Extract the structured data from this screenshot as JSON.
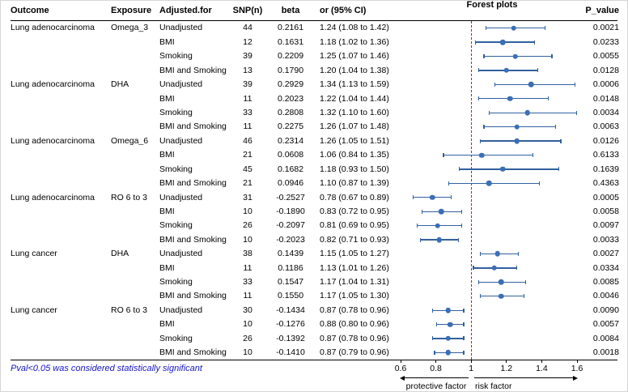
{
  "columns": [
    "Outcome",
    "Exposure",
    "Adjusted.for",
    "SNP(n)",
    "beta",
    "or (95% CI)",
    "Forest plots",
    "P_value"
  ],
  "footnote": "Pval<0.05 was considered statistically significant",
  "colors": {
    "marker": "#3b6eb5",
    "ci_line": "#31619f",
    "reference_line": "#e8000d",
    "footnote_text": "#1414cc",
    "rule": "#000000"
  },
  "chart_data": {
    "type": "scatter",
    "variant": "forest-plot",
    "title": "",
    "x_axis": {
      "min": 0.6,
      "max": 1.6,
      "scale": "linear",
      "ticks": [
        0.6,
        0.8,
        1,
        1.2,
        1.4,
        1.6
      ],
      "tick_labels": [
        "0.6",
        "0.8",
        "1",
        "1.2",
        "1.4",
        "1.6"
      ],
      "reference_line": 1
    },
    "annotations": {
      "left_label": "protective factor",
      "right_label": "risk factor"
    },
    "rows": [
      {
        "outcome": "Lung adenocarcinoma",
        "exposure": "Omega_3",
        "adjusted_for": "Unadjusted",
        "snp_n": "44",
        "beta": "0.2161",
        "or_ci": "1.24 (1.08 to 1.42)",
        "or": 1.24,
        "ci_low": 1.08,
        "ci_high": 1.42,
        "p_value": "0.0021"
      },
      {
        "outcome": "",
        "exposure": "",
        "adjusted_for": "BMI",
        "snp_n": "12",
        "beta": "0.1631",
        "or_ci": "1.18 (1.02 to 1.36)",
        "or": 1.18,
        "ci_low": 1.02,
        "ci_high": 1.36,
        "p_value": "0.0233"
      },
      {
        "outcome": "",
        "exposure": "",
        "adjusted_for": "Smoking",
        "snp_n": "39",
        "beta": "0.2209",
        "or_ci": "1.25 (1.07 to 1.46)",
        "or": 1.25,
        "ci_low": 1.07,
        "ci_high": 1.46,
        "p_value": "0.0055"
      },
      {
        "outcome": "",
        "exposure": "",
        "adjusted_for": "BMI and Smoking",
        "snp_n": "13",
        "beta": "0.1790",
        "or_ci": "1.20 (1.04 to 1.38)",
        "or": 1.2,
        "ci_low": 1.04,
        "ci_high": 1.38,
        "p_value": "0.0128"
      },
      {
        "outcome": "Lung adenocarcinoma",
        "exposure": "DHA",
        "adjusted_for": "Unadjusted",
        "snp_n": "39",
        "beta": "0.2929",
        "or_ci": "1.34 (1.13 to 1.59)",
        "or": 1.34,
        "ci_low": 1.13,
        "ci_high": 1.59,
        "p_value": "0.0006"
      },
      {
        "outcome": "",
        "exposure": "",
        "adjusted_for": "BMI",
        "snp_n": "11",
        "beta": "0.2023",
        "or_ci": "1.22 (1.04 to 1.44)",
        "or": 1.22,
        "ci_low": 1.04,
        "ci_high": 1.44,
        "p_value": "0.0148"
      },
      {
        "outcome": "",
        "exposure": "",
        "adjusted_for": "Smoking",
        "snp_n": "33",
        "beta": "0.2808",
        "or_ci": "1.32 (1.10 to 1.60)",
        "or": 1.32,
        "ci_low": 1.1,
        "ci_high": 1.6,
        "p_value": "0.0034"
      },
      {
        "outcome": "",
        "exposure": "",
        "adjusted_for": "BMI and Smoking",
        "snp_n": "11",
        "beta": "0.2275",
        "or_ci": "1.26 (1.07 to 1.48)",
        "or": 1.26,
        "ci_low": 1.07,
        "ci_high": 1.48,
        "p_value": "0.0063"
      },
      {
        "outcome": "Lung adenocarcinoma",
        "exposure": "Omega_6",
        "adjusted_for": "Unadjusted",
        "snp_n": "46",
        "beta": "0.2314",
        "or_ci": "1.26 (1.05 to 1.51)",
        "or": 1.26,
        "ci_low": 1.05,
        "ci_high": 1.51,
        "p_value": "0.0126"
      },
      {
        "outcome": "",
        "exposure": "",
        "adjusted_for": "BMI",
        "snp_n": "21",
        "beta": "0.0608",
        "or_ci": "1.06 (0.84 to 1.35)",
        "or": 1.06,
        "ci_low": 0.84,
        "ci_high": 1.35,
        "p_value": "0.6133"
      },
      {
        "outcome": "",
        "exposure": "",
        "adjusted_for": "Smoking",
        "snp_n": "45",
        "beta": "0.1682",
        "or_ci": "1.18 (0.93 to 1.50)",
        "or": 1.18,
        "ci_low": 0.93,
        "ci_high": 1.5,
        "p_value": "0.1639"
      },
      {
        "outcome": "",
        "exposure": "",
        "adjusted_for": "BMI and Smoking",
        "snp_n": "21",
        "beta": "0.0946",
        "or_ci": "1.10 (0.87 to 1.39)",
        "or": 1.1,
        "ci_low": 0.87,
        "ci_high": 1.39,
        "p_value": "0.4363"
      },
      {
        "outcome": "Lung adenocarcinoma",
        "exposure": "RO 6 to 3",
        "adjusted_for": "Unadjusted",
        "snp_n": "31",
        "beta": "-0.2527",
        "or_ci": "0.78 (0.67 to 0.89)",
        "or": 0.78,
        "ci_low": 0.67,
        "ci_high": 0.89,
        "p_value": "0.0005"
      },
      {
        "outcome": "",
        "exposure": "",
        "adjusted_for": "BMI",
        "snp_n": "10",
        "beta": "-0.1890",
        "or_ci": "0.83 (0.72 to 0.95)",
        "or": 0.83,
        "ci_low": 0.72,
        "ci_high": 0.95,
        "p_value": "0.0058"
      },
      {
        "outcome": "",
        "exposure": "",
        "adjusted_for": "Smoking",
        "snp_n": "26",
        "beta": "-0.2097",
        "or_ci": "0.81 (0.69 to 0.95)",
        "or": 0.81,
        "ci_low": 0.69,
        "ci_high": 0.95,
        "p_value": "0.0097"
      },
      {
        "outcome": "",
        "exposure": "",
        "adjusted_for": "BMI and Smoking",
        "snp_n": "10",
        "beta": "-0.2023",
        "or_ci": "0.82 (0.71 to 0.93)",
        "or": 0.82,
        "ci_low": 0.71,
        "ci_high": 0.93,
        "p_value": "0.0033"
      },
      {
        "outcome": "Lung cancer",
        "exposure": "DHA",
        "adjusted_for": "Unadjusted",
        "snp_n": "38",
        "beta": "0.1439",
        "or_ci": "1.15 (1.05 to 1.27)",
        "or": 1.15,
        "ci_low": 1.05,
        "ci_high": 1.27,
        "p_value": "0.0027"
      },
      {
        "outcome": "",
        "exposure": "",
        "adjusted_for": "BMI",
        "snp_n": "11",
        "beta": "0.1186",
        "or_ci": "1.13 (1.01 to 1.26)",
        "or": 1.13,
        "ci_low": 1.01,
        "ci_high": 1.26,
        "p_value": "0.0334"
      },
      {
        "outcome": "",
        "exposure": "",
        "adjusted_for": "Smoking",
        "snp_n": "33",
        "beta": "0.1547",
        "or_ci": "1.17 (1.04 to 1.31)",
        "or": 1.17,
        "ci_low": 1.04,
        "ci_high": 1.31,
        "p_value": "0.0085"
      },
      {
        "outcome": "",
        "exposure": "",
        "adjusted_for": "BMI and Smoking",
        "snp_n": "11",
        "beta": "0.1550",
        "or_ci": "1.17 (1.05 to 1.30)",
        "or": 1.17,
        "ci_low": 1.05,
        "ci_high": 1.3,
        "p_value": "0.0046"
      },
      {
        "outcome": "Lung cancer",
        "exposure": "RO 6 to 3",
        "adjusted_for": "Unadjusted",
        "snp_n": "30",
        "beta": "-0.1434",
        "or_ci": "0.87 (0.78 to 0.96)",
        "or": 0.87,
        "ci_low": 0.78,
        "ci_high": 0.96,
        "p_value": "0.0090"
      },
      {
        "outcome": "",
        "exposure": "",
        "adjusted_for": "BMI",
        "snp_n": "10",
        "beta": "-0.1276",
        "or_ci": "0.88 (0.80 to 0.96)",
        "or": 0.88,
        "ci_low": 0.8,
        "ci_high": 0.96,
        "p_value": "0.0057"
      },
      {
        "outcome": "",
        "exposure": "",
        "adjusted_for": "Smoking",
        "snp_n": "26",
        "beta": "-0.1392",
        "or_ci": "0.87 (0.78 to 0.96)",
        "or": 0.87,
        "ci_low": 0.78,
        "ci_high": 0.96,
        "p_value": "0.0084"
      },
      {
        "outcome": "",
        "exposure": "",
        "adjusted_for": "BMI and Smoking",
        "snp_n": "10",
        "beta": "-0.1410",
        "or_ci": "0.87 (0.79 to 0.96)",
        "or": 0.87,
        "ci_low": 0.79,
        "ci_high": 0.96,
        "p_value": "0.0018"
      }
    ]
  }
}
